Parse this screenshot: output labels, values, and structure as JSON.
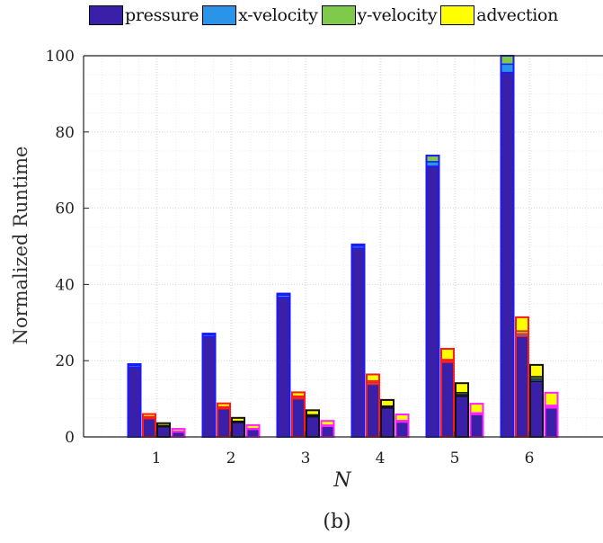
{
  "chart_data": {
    "type": "bar",
    "ylabel": "Normalized Runtime",
    "xlabel": "N",
    "caption": "(b)",
    "ylim": [
      0,
      100
    ],
    "yticks": [
      0,
      20,
      40,
      60,
      80,
      100
    ],
    "categories": [
      "1",
      "2",
      "3",
      "4",
      "5",
      "6"
    ],
    "grid": true,
    "legend_position": "top",
    "stack_components": [
      {
        "name": "pressure",
        "color": "#3a1fa8"
      },
      {
        "name": "x-velocity",
        "color": "#2a95e8"
      },
      {
        "name": "y-velocity",
        "color": "#7fca4a"
      },
      {
        "name": "advection",
        "color": "#ffff00"
      }
    ],
    "groups": [
      {
        "outline": "#1a1aff",
        "stacks": [
          [
            18.3,
            0.5,
            0.3,
            0.0
          ],
          [
            26.3,
            0.5,
            0.3,
            0.0
          ],
          [
            36.6,
            0.6,
            0.4,
            0.0
          ],
          [
            49.5,
            0.6,
            0.4,
            0.0
          ],
          [
            71.0,
            1.2,
            1.6,
            0.0
          ],
          [
            95.6,
            2.2,
            2.2,
            0.0
          ]
        ]
      },
      {
        "outline": "#ff1a1a",
        "stacks": [
          [
            4.8,
            0.3,
            0.2,
            0.7
          ],
          [
            7.4,
            0.3,
            0.2,
            0.9
          ],
          [
            10.0,
            0.4,
            0.3,
            1.0
          ],
          [
            13.8,
            0.5,
            0.4,
            1.7
          ],
          [
            19.6,
            0.4,
            0.3,
            2.8
          ],
          [
            26.4,
            0.6,
            0.8,
            3.6
          ]
        ]
      },
      {
        "outline": "#111111",
        "stacks": [
          [
            2.7,
            0.2,
            0.1,
            0.6
          ],
          [
            3.8,
            0.2,
            0.1,
            0.9
          ],
          [
            5.3,
            0.3,
            0.2,
            1.2
          ],
          [
            7.6,
            0.3,
            0.2,
            1.6
          ],
          [
            10.7,
            0.4,
            0.5,
            2.5
          ],
          [
            14.6,
            0.6,
            0.6,
            3.1
          ]
        ]
      },
      {
        "outline": "#ff22ff",
        "stacks": [
          [
            1.3,
            0.1,
            0.1,
            0.6
          ],
          [
            2.0,
            0.1,
            0.1,
            0.9
          ],
          [
            2.8,
            0.2,
            0.1,
            1.1
          ],
          [
            3.9,
            0.2,
            0.2,
            1.6
          ],
          [
            5.9,
            0.2,
            0.2,
            2.4
          ],
          [
            7.6,
            0.3,
            0.4,
            3.3
          ]
        ]
      }
    ]
  }
}
